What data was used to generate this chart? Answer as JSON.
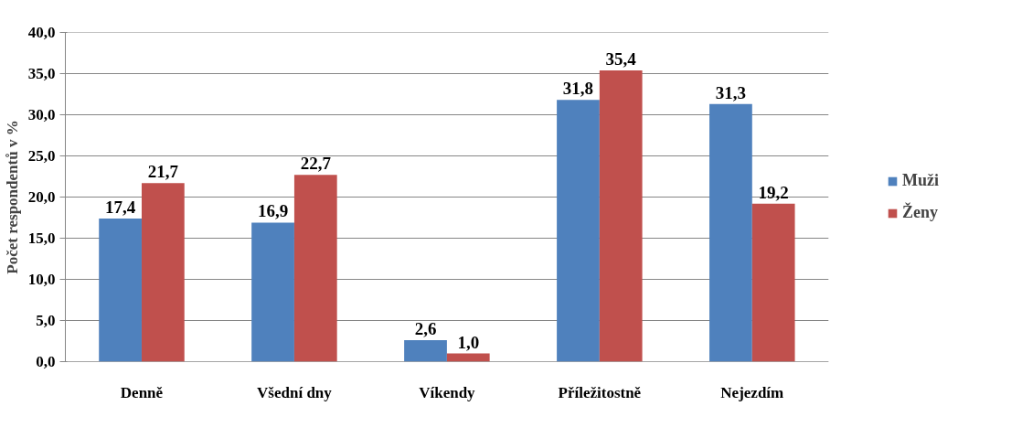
{
  "chart_data": {
    "type": "bar",
    "ylabel": "Počet respondentů v %",
    "categories": [
      "Denně",
      "Všední dny",
      "Víkendy",
      "Příležitostně",
      "Nejezdím"
    ],
    "series": [
      {
        "name": "Muži",
        "color": "#4f81bd",
        "values": [
          17.4,
          16.9,
          2.6,
          31.8,
          31.3
        ],
        "value_labels": [
          "17,4",
          "16,9",
          "2,6",
          "31,8",
          "31,3"
        ]
      },
      {
        "name": "Ženy",
        "color": "#c0504d",
        "values": [
          21.7,
          22.7,
          1.0,
          35.4,
          19.2
        ],
        "value_labels": [
          "21,7",
          "22,7",
          "1,0",
          "35,4",
          "19,2"
        ]
      }
    ],
    "ylim": [
      0,
      40
    ],
    "yticks": [
      {
        "value": 0,
        "label": "0,0"
      },
      {
        "value": 5,
        "label": "5,0"
      },
      {
        "value": 10,
        "label": "10,0"
      },
      {
        "value": 15,
        "label": "15,0"
      },
      {
        "value": 20,
        "label": "20,0"
      },
      {
        "value": 25,
        "label": "25,0"
      },
      {
        "value": 30,
        "label": "30,0"
      },
      {
        "value": 35,
        "label": "35,0"
      },
      {
        "value": 40,
        "label": "40,0"
      }
    ],
    "grid": "y",
    "legend": "right"
  }
}
